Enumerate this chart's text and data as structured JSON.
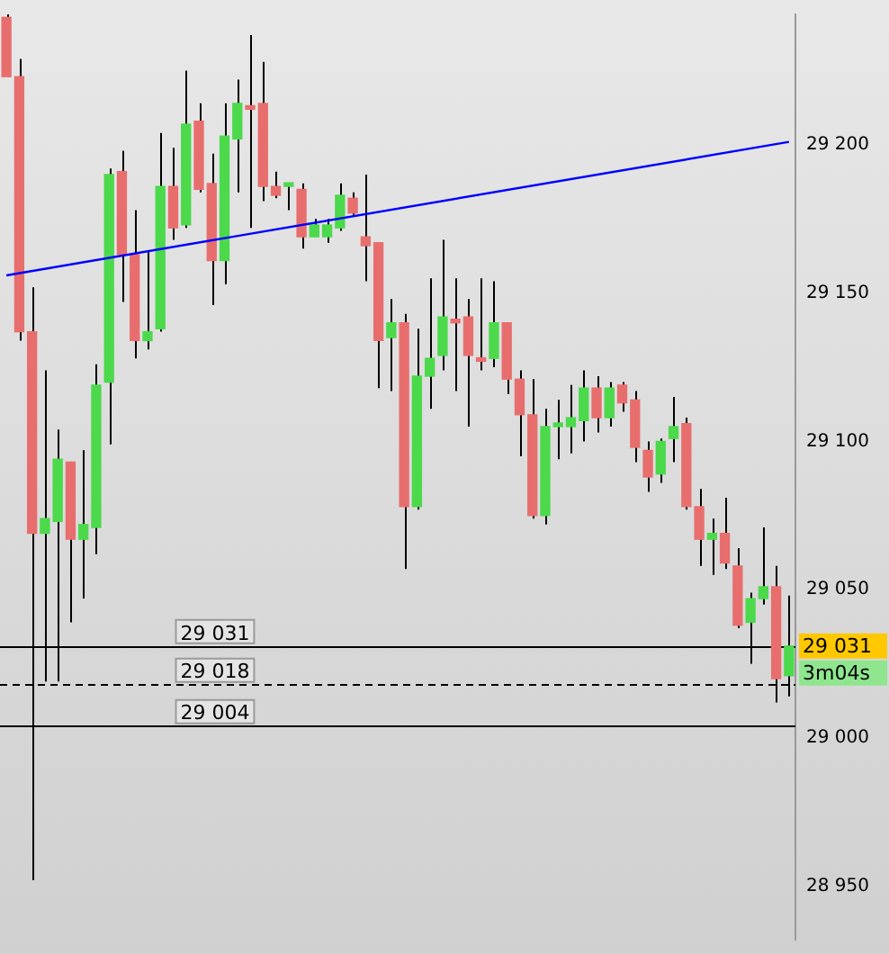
{
  "chart_data": {
    "type": "candlestick",
    "categories": [
      null,
      null,
      null,
      null,
      null,
      null,
      null,
      null,
      null,
      null,
      null,
      null,
      null,
      null,
      null,
      null,
      null,
      null,
      null,
      null,
      null,
      null,
      null,
      null,
      null,
      null,
      null,
      null,
      null,
      null,
      null,
      null,
      null,
      null,
      null,
      null,
      null,
      null,
      null,
      null,
      null,
      null,
      null,
      null,
      null,
      null,
      null,
      null,
      null,
      null,
      null,
      null,
      null,
      null,
      null,
      null,
      null,
      null,
      null,
      null,
      null,
      null
    ],
    "ohlc": [
      [
        29243,
        29244,
        29223,
        29223
      ],
      [
        29223,
        29229,
        29134,
        29137
      ],
      [
        29137,
        29152,
        28952,
        29069
      ],
      [
        29069,
        29124,
        29019,
        29074
      ],
      [
        29073,
        29104,
        29019,
        29094
      ],
      [
        29093,
        29093,
        29039,
        29067
      ],
      [
        29067,
        29097,
        29047,
        29072
      ],
      [
        29071,
        29126,
        29062,
        29119
      ],
      [
        29120,
        29192,
        29099,
        29190
      ],
      [
        29191,
        29198,
        29147,
        29163
      ],
      [
        29163,
        29178,
        29128,
        29134
      ],
      [
        29134,
        29164,
        29131,
        29137
      ],
      [
        29138,
        29204,
        29137,
        29186
      ],
      [
        29186,
        29199,
        29168,
        29172
      ],
      [
        29173,
        29225,
        29172,
        29207
      ],
      [
        29208,
        29214,
        29184,
        29185
      ],
      [
        29187,
        29197,
        29146,
        29161
      ],
      [
        29161,
        29214,
        29153,
        29203
      ],
      [
        29202,
        29222,
        29184,
        29214
      ],
      [
        29213,
        29237,
        29172,
        29212
      ],
      [
        29214,
        29228,
        29181,
        29186
      ],
      [
        29186,
        29191,
        29182,
        29183
      ],
      [
        29186,
        29187,
        29178,
        29186
      ],
      [
        29185,
        29187,
        29165,
        29169
      ],
      [
        29169,
        29175,
        29169,
        29173
      ],
      [
        29169,
        29175,
        29167,
        29173
      ],
      [
        29172,
        29187,
        29171,
        29183
      ],
      [
        29182,
        29184,
        29176,
        29177
      ],
      [
        29169,
        29190,
        29154,
        29166
      ],
      [
        29167,
        29167,
        29118,
        29134
      ],
      [
        29135,
        29148,
        29117,
        29140
      ],
      [
        29140,
        29143,
        29057,
        29078
      ],
      [
        29078,
        29138,
        29077,
        29122
      ],
      [
        29122,
        29155,
        29111,
        29128
      ],
      [
        29129,
        29168,
        29124,
        29142
      ],
      [
        29141,
        29155,
        29117,
        29140
      ],
      [
        29142,
        29148,
        29105,
        29129
      ],
      [
        29128,
        29155,
        29124,
        29127
      ],
      [
        29128,
        29154,
        29125,
        29140
      ],
      [
        29140,
        29140,
        29116,
        29121
      ],
      [
        29121,
        29124,
        29095,
        29109
      ],
      [
        29109,
        29121,
        29074,
        29075
      ],
      [
        29075,
        29111,
        29072,
        29105
      ],
      [
        29105,
        29114,
        29094,
        29106
      ],
      [
        29105,
        29119,
        29096,
        29108
      ],
      [
        29107,
        29124,
        29100,
        29118
      ],
      [
        29118,
        29122,
        29103,
        29108
      ],
      [
        29108,
        29120,
        29105,
        29118
      ],
      [
        29119,
        29120,
        29110,
        29113
      ],
      [
        29114,
        29117,
        29093,
        29098
      ],
      [
        29097,
        29100,
        29083,
        29088
      ],
      [
        29089,
        29101,
        29086,
        29100
      ],
      [
        29101,
        29115,
        29093,
        29105
      ],
      [
        29106,
        29108,
        29077,
        29078
      ],
      [
        29078,
        29084,
        29058,
        29067
      ],
      [
        29067,
        29074,
        29055,
        29069
      ],
      [
        29069,
        29081,
        29057,
        29059
      ],
      [
        29058,
        29064,
        29037,
        29038
      ],
      [
        29039,
        29049,
        29025,
        29047
      ],
      [
        29047,
        29071,
        29045,
        29051
      ],
      [
        29051,
        29058,
        29012,
        29020
      ],
      [
        29021,
        29048,
        29014,
        29031
      ]
    ],
    "colors": [
      "#e86e6e",
      "#e86e6e",
      "#e86e6e",
      "#4cd94c",
      "#4cd94c",
      "#e86e6e",
      "#4cd94c",
      "#4cd94c",
      "#4cd94c",
      "#e86e6e",
      "#e86e6e",
      "#4cd94c",
      "#4cd94c",
      "#e86e6e",
      "#4cd94c",
      "#e86e6e",
      "#e86e6e",
      "#4cd94c",
      "#4cd94c",
      "#e86e6e",
      "#e86e6e",
      "#e86e6e",
      "#4cd94c",
      "#e86e6e",
      "#4cd94c",
      "#4cd94c",
      "#4cd94c",
      "#e86e6e",
      "#e86e6e",
      "#e86e6e",
      "#4cd94c",
      "#e86e6e",
      "#4cd94c",
      "#4cd94c",
      "#4cd94c",
      "#e86e6e",
      "#e86e6e",
      "#e86e6e",
      "#4cd94c",
      "#e86e6e",
      "#e86e6e",
      "#e86e6e",
      "#4cd94c",
      "#4cd94c",
      "#4cd94c",
      "#4cd94c",
      "#e86e6e",
      "#4cd94c",
      "#e86e6e",
      "#e86e6e",
      "#e86e6e",
      "#4cd94c",
      "#4cd94c",
      "#e86e6e",
      "#e86e6e",
      "#4cd94c",
      "#e86e6e",
      "#e86e6e",
      "#4cd94c",
      "#4cd94c",
      "#e86e6e",
      "#4cd94c"
    ],
    "series": [
      {
        "type": "line",
        "color": "#0000ff",
        "values": [
          29156,
          null,
          null,
          null,
          null,
          null,
          null,
          null,
          null,
          null,
          null,
          null,
          null,
          null,
          null,
          null,
          null,
          null,
          null,
          null,
          null,
          null,
          null,
          null,
          null,
          null,
          null,
          null,
          null,
          null,
          null,
          null,
          null,
          null,
          null,
          null,
          null,
          null,
          null,
          null,
          null,
          null,
          null,
          null,
          null,
          null,
          null,
          null,
          null,
          null,
          null,
          null,
          null,
          null,
          null,
          null,
          null,
          null,
          null,
          null,
          null,
          29201
        ]
      }
    ],
    "ylim": [
      28932,
      29244
    ],
    "yticks": [
      {
        "value": 28950,
        "label": "28 950"
      },
      {
        "value": 29000,
        "label": "29 000"
      },
      {
        "value": 29050,
        "label": "29 050"
      },
      {
        "value": 29100,
        "label": "29 100"
      },
      {
        "value": 29150,
        "label": "29 150"
      },
      {
        "value": 29200,
        "label": "29 200"
      }
    ],
    "ref_lines": [
      {
        "axis": "y",
        "value": 29031,
        "label": "29 031",
        "color": "#000000",
        "line_style": "solid"
      },
      {
        "axis": "y",
        "value": 29018,
        "label": "29 018",
        "color": "#000000",
        "line_style": "dashed"
      },
      {
        "axis": "y",
        "value": 29004,
        "label": "29 004",
        "color": "#000000",
        "line_style": "solid"
      }
    ],
    "annotations": [
      "29 031",
      "3m04s"
    ],
    "legend": false,
    "grid": false,
    "marker": "none",
    "tick_labels": "y"
  }
}
